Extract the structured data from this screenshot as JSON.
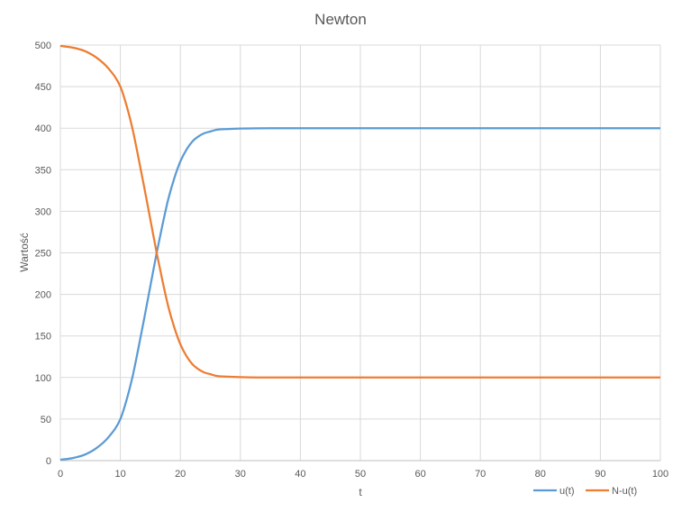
{
  "chart_data": {
    "type": "line",
    "title": "Newton",
    "xlabel": "t",
    "ylabel": "Wartość",
    "xlim": [
      0,
      100
    ],
    "ylim": [
      0,
      500
    ],
    "x_ticks": [
      0,
      10,
      20,
      30,
      40,
      50,
      60,
      70,
      80,
      90,
      100
    ],
    "y_ticks": [
      0,
      50,
      100,
      150,
      200,
      250,
      300,
      350,
      400,
      450,
      500
    ],
    "grid": true,
    "legend_position": "bottom-right",
    "x": [
      0,
      2,
      4,
      6,
      8,
      10,
      11,
      12,
      13,
      14,
      15,
      16,
      17,
      18,
      19,
      20,
      21,
      22,
      23,
      24,
      25,
      26,
      28,
      30,
      35,
      40,
      50,
      60,
      70,
      80,
      90,
      100
    ],
    "series": [
      {
        "name": "u(t)",
        "color": "#5b9bd5",
        "values": [
          1,
          3,
          7,
          15,
          28,
          50,
          72,
          100,
          135,
          172,
          210,
          248,
          283,
          315,
          340,
          360,
          374,
          384,
          390,
          394,
          396,
          398,
          399,
          399.5,
          400,
          400,
          400,
          400,
          400,
          400,
          400,
          400
        ]
      },
      {
        "name": "N-u(t)",
        "color": "#ed7d31",
        "values": [
          499,
          497,
          493,
          485,
          472,
          450,
          428,
          400,
          365,
          328,
          290,
          252,
          217,
          185,
          160,
          140,
          126,
          116,
          110,
          106,
          104,
          102,
          101,
          100.5,
          100,
          100,
          100,
          100,
          100,
          100,
          100,
          100
        ]
      }
    ]
  }
}
